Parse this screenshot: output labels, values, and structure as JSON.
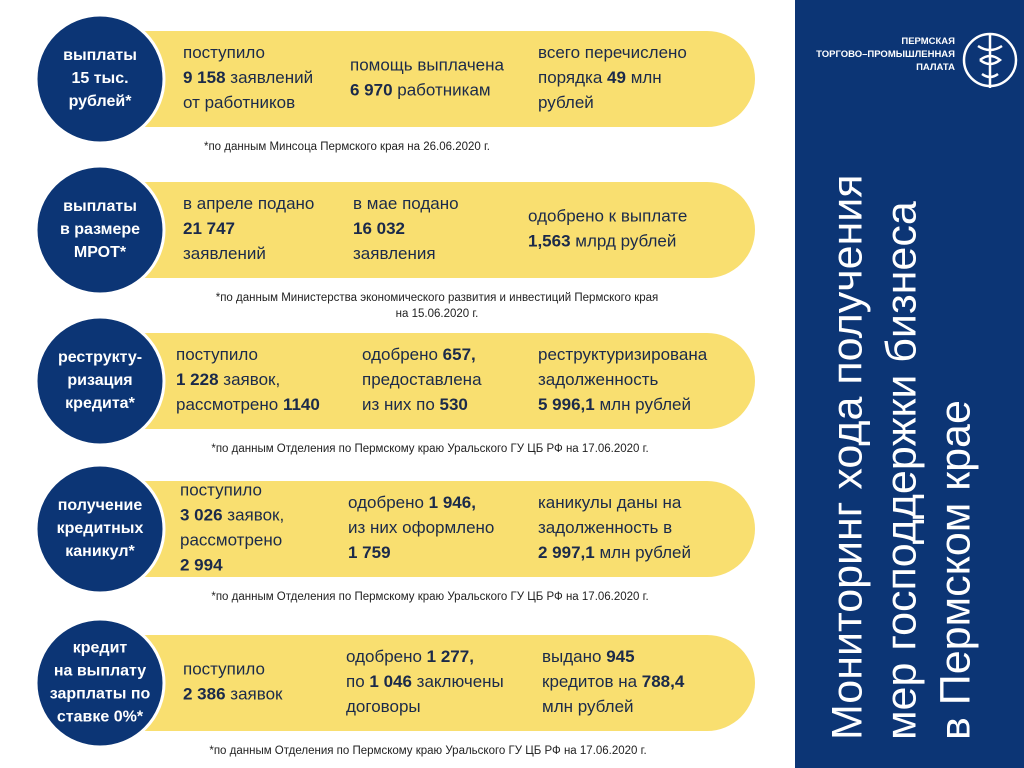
{
  "logo": {
    "lines": [
      "ПЕРМСКАЯ",
      "ТОРГОВО–ПРОМЫШЛЕННАЯ",
      "ПАЛАТА"
    ]
  },
  "title": {
    "lines": [
      "Мониторинг хода получения",
      "мер господдержки бизнеса",
      "в Пермском крае"
    ]
  },
  "rows": [
    {
      "label": [
        "выплаты",
        "15 тыс.",
        "рублей*"
      ],
      "cells": [
        [
          [
            "поступило"
          ],
          [
            {
              "bold": "9 158"
            },
            " заявлений"
          ],
          [
            "от работников"
          ]
        ],
        [
          [
            "помощь выплачена"
          ],
          [
            {
              "bold": "6 970"
            },
            " работникам"
          ]
        ],
        [
          [
            "всего перечислено"
          ],
          [
            "порядка ",
            {
              "bold": "49"
            },
            " млн"
          ],
          [
            "рублей"
          ]
        ]
      ],
      "note": [
        "*по данным Минсоца Пермского края на 26.06.2020 г."
      ]
    },
    {
      "label": [
        "выплаты",
        "в размере",
        "МРОТ*"
      ],
      "cells": [
        [
          [
            "в апреле подано"
          ],
          [
            {
              "bold": "21 747"
            }
          ],
          [
            "заявлений"
          ]
        ],
        [
          [
            "в мае подано"
          ],
          [
            {
              "bold": "16 032"
            }
          ],
          [
            "заявления"
          ]
        ],
        [
          [
            "одобрено к выплате"
          ],
          [
            {
              "bold": "1,563"
            },
            " млрд рублей"
          ]
        ]
      ],
      "note": [
        "*по данным Министерства экономического развития и инвестиций Пермского края",
        "на 15.06.2020 г."
      ]
    },
    {
      "label": [
        "реструкту-",
        "ризация",
        "кредита*"
      ],
      "cells": [
        [
          [
            "поступило"
          ],
          [
            {
              "bold": "1 228"
            },
            " заявок,"
          ],
          [
            "рассмотрено ",
            {
              "bold": "1140"
            }
          ]
        ],
        [
          [
            "одобрено ",
            {
              "bold": "657,"
            }
          ],
          [
            "предоставлена"
          ],
          [
            "из них по ",
            {
              "bold": "530"
            }
          ]
        ],
        [
          [
            "реструктуризирована"
          ],
          [
            "задолженность"
          ],
          [
            {
              "bold": "5 996,1"
            },
            " млн рублей"
          ]
        ]
      ],
      "note": [
        "*по данным Отделения по Пермскому краю Уральского ГУ ЦБ РФ на 17.06.2020 г."
      ]
    },
    {
      "label": [
        "получение",
        "кредитных",
        "каникул*"
      ],
      "cells": [
        [
          [
            "поступило"
          ],
          [
            {
              "bold": "3 026"
            },
            " заявок,"
          ],
          [
            "рассмотрено"
          ],
          [
            {
              "bold": "2 994"
            }
          ]
        ],
        [
          [
            "одобрено ",
            {
              "bold": "1 946,"
            }
          ],
          [
            "из них оформлено"
          ],
          [
            {
              "bold": "1 759"
            }
          ]
        ],
        [
          [
            "каникулы даны на"
          ],
          [
            "задолженность в"
          ],
          [
            {
              "bold": "2 997,1"
            },
            " млн рублей"
          ]
        ]
      ],
      "note": [
        "*по данным Отделения по Пермскому краю Уральского ГУ ЦБ РФ на 17.06.2020 г."
      ]
    },
    {
      "label": [
        "кредит",
        "на выплату",
        "зарплаты по",
        "ставке 0%*"
      ],
      "cells": [
        [
          [
            "поступило"
          ],
          [
            {
              "bold": "2 386"
            },
            " заявок"
          ]
        ],
        [
          [
            "одобрено ",
            {
              "bold": "1 277,"
            }
          ],
          [
            "по ",
            {
              "bold": "1 046"
            },
            " заключены"
          ],
          [
            "договоры"
          ]
        ],
        [
          [
            "выдано ",
            {
              "bold": "945"
            }
          ],
          [
            "кредитов на ",
            {
              "bold": "788,4"
            }
          ],
          [
            "млн рублей"
          ]
        ]
      ],
      "note": [
        "*по данным Отделения по Пермскому краю Уральского ГУ ЦБ РФ на 17.06.2020 г."
      ]
    }
  ]
}
